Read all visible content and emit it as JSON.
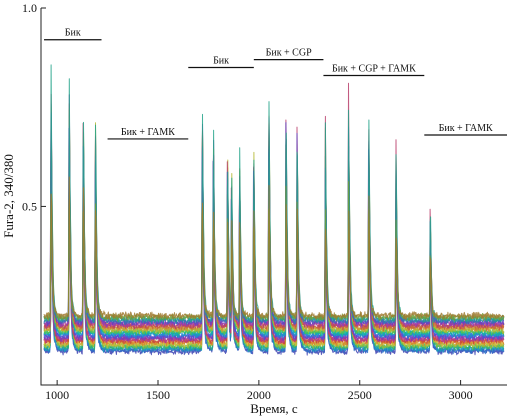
{
  "chart_data": {
    "type": "line",
    "title": "",
    "xlabel": "Время, с",
    "ylabel": "Fura-2, 340/380",
    "xlim": [
      920,
      3230
    ],
    "ylim": [
      0.05,
      1.0
    ],
    "x_ticks": [
      1000,
      1500,
      2000,
      2500,
      3000
    ],
    "x_tick_labels": [
      "1000",
      "1500",
      "2000",
      "2500",
      "3000"
    ],
    "y_ticks": [
      0.5,
      1.0
    ],
    "y_tick_labels": [
      "0.5",
      "1.0"
    ],
    "baseline": 0.18,
    "baseline_spread": 0.045,
    "baseline_noise": 0.012,
    "trace_x_range": [
      935,
      3215
    ],
    "trace_count": 24,
    "trace_colors": [
      "#3b3fb0",
      "#2a6fc9",
      "#16a0b8",
      "#2fb36a",
      "#8fbf3a",
      "#d0b83a",
      "#d9822b",
      "#c9433a",
      "#b63a8f",
      "#7d3ab6",
      "#4a54d6",
      "#1c8fd1",
      "#0fb3a0",
      "#57c14b",
      "#b4b832",
      "#cf9a32",
      "#c95f3a",
      "#b83e6b",
      "#9a3bb0",
      "#5e45c2",
      "#2c7fb0",
      "#23a38a",
      "#6e9f3a",
      "#a07a2f"
    ],
    "spikes": [
      {
        "t": 970,
        "peak": 0.85
      },
      {
        "t": 1060,
        "peak": 0.84
      },
      {
        "t": 1130,
        "peak": 0.78
      },
      {
        "t": 1190,
        "peak": 0.76
      },
      {
        "t": 1720,
        "peak": 0.77
      },
      {
        "t": 1775,
        "peak": 0.73
      },
      {
        "t": 1845,
        "peak": 0.66
      },
      {
        "t": 1865,
        "peak": 0.58
      },
      {
        "t": 1905,
        "peak": 0.64
      },
      {
        "t": 1975,
        "peak": 0.66
      },
      {
        "t": 2050,
        "peak": 0.79
      },
      {
        "t": 2135,
        "peak": 0.76
      },
      {
        "t": 2190,
        "peak": 0.7
      },
      {
        "t": 2330,
        "peak": 0.72
      },
      {
        "t": 2445,
        "peak": 0.77
      },
      {
        "t": 2545,
        "peak": 0.76
      },
      {
        "t": 2680,
        "peak": 0.66
      },
      {
        "t": 2850,
        "peak": 0.49
      }
    ],
    "annotations": [
      {
        "label": "Бик",
        "x_start": 935,
        "x_end": 1220,
        "y": 0.92
      },
      {
        "label": "Бик + ГАМК",
        "x_start": 1250,
        "x_end": 1650,
        "y": 0.67
      },
      {
        "label": "Бик",
        "x_start": 1650,
        "x_end": 1975,
        "y": 0.85
      },
      {
        "label": "Бик + CGP",
        "x_start": 1975,
        "x_end": 2320,
        "y": 0.87
      },
      {
        "label": "Бик + CGP + ГАМК",
        "x_start": 2320,
        "x_end": 2820,
        "y": 0.83
      },
      {
        "label": "Бик + ГАМК",
        "x_start": 2820,
        "x_end": 3230,
        "y": 0.68
      }
    ]
  }
}
